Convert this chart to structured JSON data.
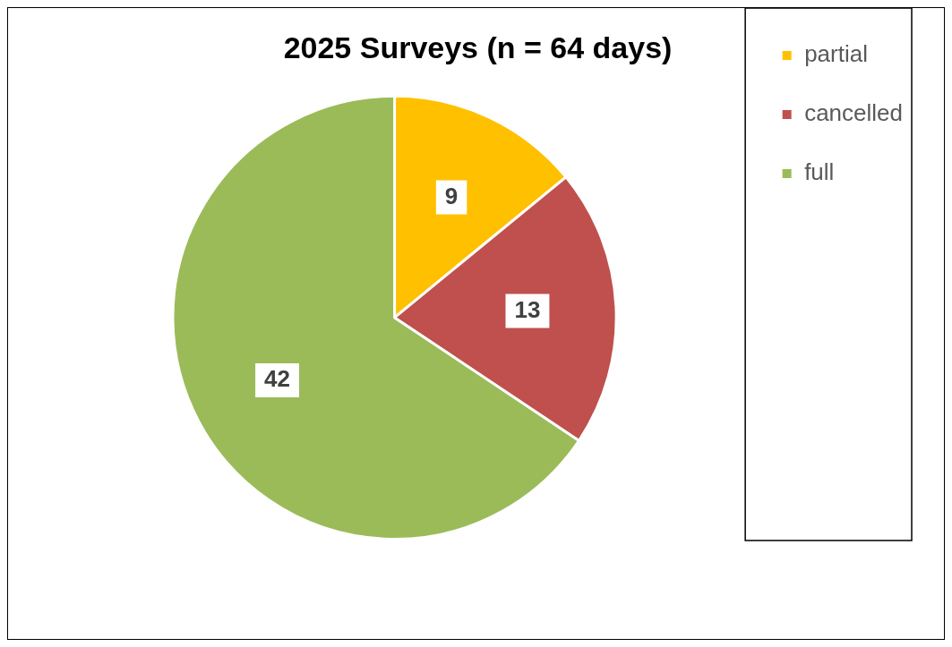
{
  "chart_data": {
    "type": "pie",
    "title": "2025 Surveys (n = 64 days)",
    "categories": [
      "partial",
      "cancelled",
      "full"
    ],
    "values": [
      9,
      13,
      42
    ],
    "colors": [
      "#ffc000",
      "#c0504d",
      "#9bbb59"
    ],
    "data_labels": true,
    "legend": "top right"
  }
}
